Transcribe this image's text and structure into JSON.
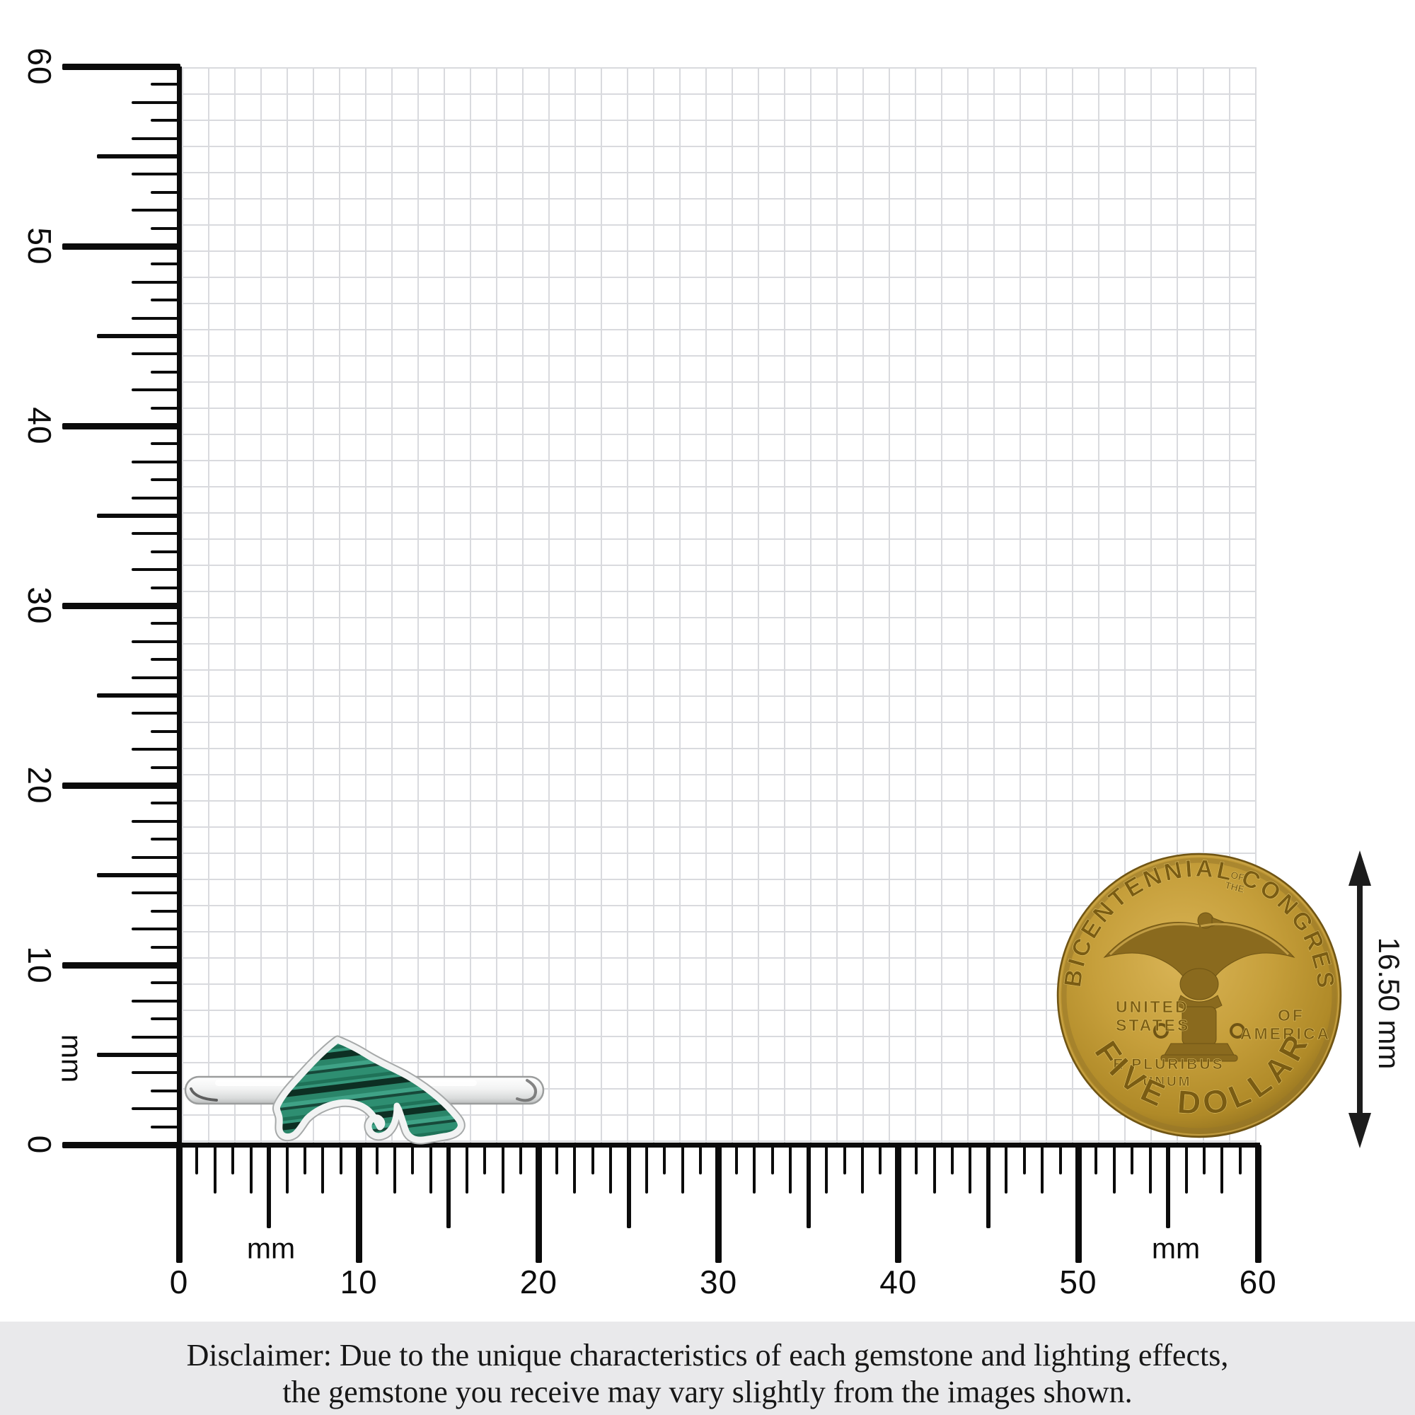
{
  "rulers": {
    "unit_label": "mm",
    "vertical": {
      "labels": [
        "0",
        "10",
        "20",
        "30",
        "40",
        "50",
        "60"
      ]
    },
    "horizontal": {
      "labels": [
        "0",
        "10",
        "20",
        "30",
        "40",
        "50",
        "60"
      ]
    }
  },
  "dimension": {
    "label": "16.50 mm"
  },
  "coin": {
    "legend_left_arc": "BICENTENNIAL",
    "legend_mid_line1": "OF",
    "legend_mid_line2": "THE",
    "legend_right_arc": "CONGRESS",
    "left_line1": "UNITED",
    "left_line2": "STATES",
    "right_line1": "OF",
    "right_line2": "AMERICA",
    "motto_line1": "E PLURIBUS",
    "motto_line2": "UNUM",
    "denomination": "FIVE DOLLARS"
  },
  "disclaimer": {
    "line1": "Disclaimer: Due to the unique characteristics of each gemstone and lighting effects,",
    "line2": "the gemstone you receive may vary slightly from the images shown."
  },
  "colors": {
    "malachite_green": "#2e8e71",
    "malachite_dark_band": "#0d2f23",
    "silver": "#f2f3f3",
    "coin_gold": "#c69f3b",
    "grid_line": "#d9dade",
    "footer_bg": "#e9e9eb"
  }
}
